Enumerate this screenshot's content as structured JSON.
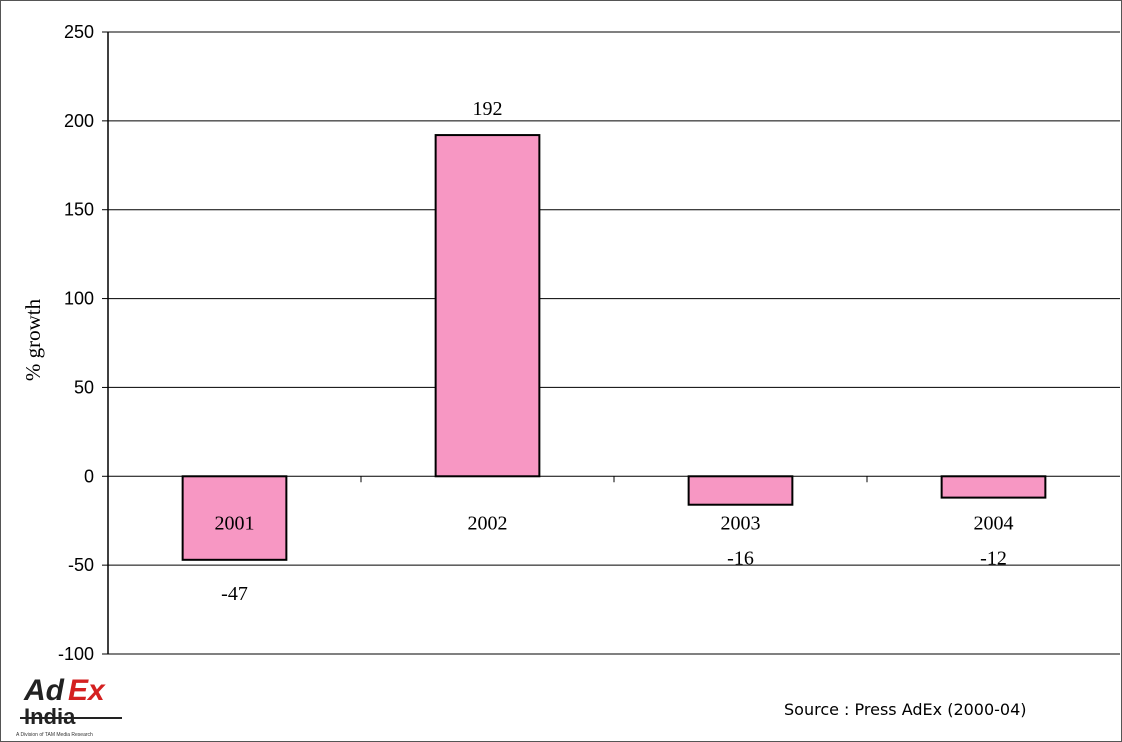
{
  "chart_data": {
    "type": "bar",
    "categories": [
      "2001",
      "2002",
      "2003",
      "2004"
    ],
    "values": [
      -47,
      192,
      -16,
      -12
    ],
    "value_labels": [
      "-47",
      "192",
      "-16",
      "-12"
    ],
    "title": "",
    "xlabel": "",
    "ylabel": "% growth",
    "ylim": [
      -100,
      250
    ],
    "yticks": [
      250,
      200,
      150,
      100,
      50,
      0,
      -50,
      -100
    ],
    "grid": true,
    "bar_color": "#f797c3",
    "bar_edge_color": "#000000",
    "legend": "none"
  },
  "source_text": "Source : Press AdEx (2000-04)",
  "logo": {
    "line1_part1": "Ad",
    "line1_part2": "Ex",
    "line2": "India",
    "tagline": "A Division of TAM Media Research"
  }
}
